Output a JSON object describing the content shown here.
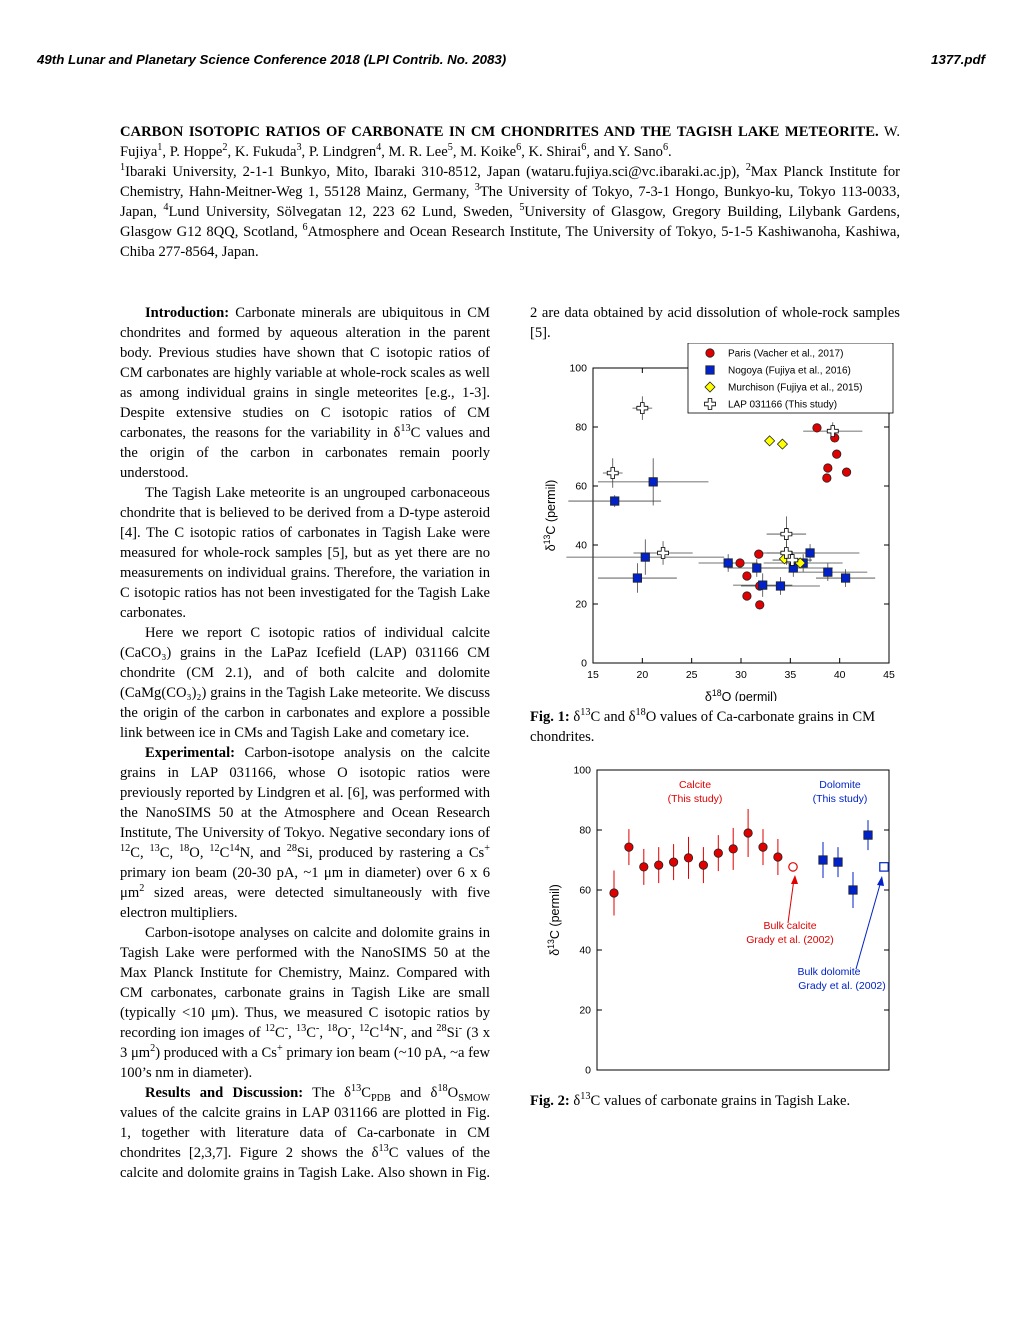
{
  "header": {
    "left": "49th Lunar and Planetary Science Conference 2018 (LPI Contrib. No. 2083)",
    "right": "1377.pdf"
  },
  "title_block": [
    {
      "b": "CARBON ISOTOPIC RATIOS OF CARBONATE IN CM CHONDRITES AND THE TAGISH LAKE METEORITE."
    },
    " W. Fujiya",
    {
      "sup": "1"
    },
    ", P. Hoppe",
    {
      "sup": "2"
    },
    ", K. Fukuda",
    {
      "sup": "3"
    },
    ", P. Lindgren",
    {
      "sup": "4"
    },
    ", M. R. Lee",
    {
      "sup": "5"
    },
    ", M. Koike",
    {
      "sup": "6"
    },
    ", K. Shirai",
    {
      "sup": "6"
    },
    ", and Y. Sano",
    {
      "sup": "6"
    },
    "."
  ],
  "affiliations": [
    {
      "sup": "1"
    },
    "Ibaraki University, 2-1-1 Bunkyo, Mito, Ibaraki 310-8512, Japan (wataru.fujiya.sci@vc.ibaraki.ac.jp), ",
    {
      "sup": "2"
    },
    "Max Planck Institute for Chemistry, Hahn-Meitner-Weg 1, 55128 Mainz, Germany, ",
    {
      "sup": "3"
    },
    "The University of Tokyo, 7-3-1 Hongo, Bunkyo-ku, Tokyo 113-0033, Japan, ",
    {
      "sup": "4"
    },
    "Lund University, Sölvegatan 12, 223 62 Lund, Sweden, ",
    {
      "sup": "5"
    },
    "University of Glasgow, Gregory Building, Lilybank Gardens, Glasgow G12 8QQ, Scotland, ",
    {
      "sup": "6"
    },
    "Atmosphere and Ocean Research Institute, The University of Tokyo, 5-1-5 Kashiwanoha, Kashiwa, Chiba 277-8564, Japan."
  ],
  "body": [
    [
      {
        "b": "Introduction:"
      },
      " Carbonate minerals are ubiquitous in CM chondrites and formed by aqueous alteration in the parent body. Previous studies have shown that C isotopic ratios of CM carbonates are highly variable at whole-rock scales as well as among individual grains in single meteorites [e.g., 1-3]. Despite extensive studies on C isotopic ratios of CM carbonates, the reasons for the variability in δ",
      {
        "sup": "13"
      },
      "C values and the origin of the carbon in carbonates remain poorly understood."
    ],
    [
      "The Tagish Lake meteorite is an ungrouped carbonaceous chondrite that is believed to be derived from a D-type asteroid [4]. The C isotopic ratios of carbonates in Tagish Lake were measured for whole-rock samples [5], but as yet there are no measurements on individual grains. Therefore, the variation in C isotopic ratios has not been investigated for the Tagish Lake carbonates."
    ],
    [
      "Here we report C isotopic ratios of individual calcite (CaCO₃) grains in the LaPaz Icefield (LAP) 031166 CM chondrite (CM 2.1), and of both calcite and dolomite (CaMg(CO₃)₂) grains in the Tagish Lake meteorite. We discuss the origin of the carbon in carbonates and explore a possible link between ice in CMs and Tagish Lake and cometary ice."
    ],
    [
      {
        "b": "Experimental:"
      },
      " Carbon-isotope analysis on the calcite grains in LAP 031166, whose O isotopic ratios were previously reported by Lindgren et al. [6], was performed with the NanoSIMS 50 at the Atmosphere and Ocean Research Institute, The University of Tokyo. Negative secondary ions of ",
      {
        "sup": "12"
      },
      "C, ",
      {
        "sup": "13"
      },
      "C, ",
      {
        "sup": "18"
      },
      "O, ",
      {
        "sup": "12"
      },
      "C",
      {
        "sup": "14"
      },
      "N, and ",
      {
        "sup": "28"
      },
      "Si, produced by rastering a Cs",
      {
        "sup": "+"
      },
      " primary ion beam (20-30 pA, ~1 μm in diameter) over 6 x 6 μm",
      {
        "sup": "2"
      },
      " sized areas, were detected simultaneously with five electron multipliers."
    ],
    [
      "Carbon-isotope analyses on calcite and dolomite grains in Tagish Lake were performed with the NanoSIMS 50 at the Max Planck Institute for Chemistry, Mainz. Compared with CM carbonates, carbonate grains in Tagish Like are small (typically <10 μm). Thus, we measured C isotopic ratios by recording ion images of ",
      {
        "sup": "12"
      },
      "C",
      {
        "sup": "-"
      },
      ", ",
      {
        "sup": "13"
      },
      "C",
      {
        "sup": "-"
      },
      ", ",
      {
        "sup": "18"
      },
      "O",
      {
        "sup": "-"
      },
      ", ",
      {
        "sup": "12"
      },
      "C",
      {
        "sup": "14"
      },
      "N",
      {
        "sup": "-"
      },
      ", and ",
      {
        "sup": "28"
      },
      "Si",
      {
        "sup": "-"
      },
      " (3 x 3 μm",
      {
        "sup": "2"
      },
      ") produced with a Cs",
      {
        "sup": "+"
      },
      " primary ion beam (~10 pA, ~a few 100’s nm in diameter)."
    ],
    [
      {
        "b": "Results and Discussion:"
      },
      " The δ",
      {
        "sup": "13"
      },
      "C",
      {
        "sub": "PDB"
      },
      " and δ",
      {
        "sup": "18"
      },
      "O",
      {
        "sub": "SMOW"
      },
      " values of the calcite grains in LAP 031166 are plotted in Fig. 1, together with literature data of Ca-carbonate in CM chondrites [2,3,7]. Figure 2 shows the δ",
      {
        "sup": "13"
      },
      "C values of the calcite and dolomite grains in Tagish Lake. Also shown in Fig. 2 are data obtained by acid dissolution of whole-rock samples [5]."
    ]
  ],
  "chart_data": [
    {
      "type": "scatter",
      "xlabel": [
        "δ",
        {
          "sup": "18"
        },
        "O (permil)"
      ],
      "ylabel": [
        "δ",
        {
          "sup": "13"
        },
        "C (permil)"
      ],
      "xlim": [
        15,
        45
      ],
      "ylim": [
        0,
        100
      ],
      "xticks": [
        15,
        20,
        25,
        30,
        35,
        40,
        45
      ],
      "yticks": [
        0,
        20,
        40,
        60,
        80,
        100
      ],
      "legend": "upper right",
      "series": [
        {
          "name": "Paris (Vacher et al., 2017)",
          "color": "#e00000",
          "marker": "circle",
          "filled": true,
          "x": [
            37.7,
            39.5,
            39.7,
            38.8,
            38.7,
            40.7,
            31.8,
            28.7,
            29.9,
            30.6,
            31.9,
            30.6,
            31.9
          ],
          "values": [
            79.7,
            76.3,
            70.8,
            66.1,
            62.7,
            64.7,
            36.9,
            33.9,
            33.9,
            29.5,
            26.1,
            22.7,
            19.7
          ]
        },
        {
          "name": "Nogoya (Fujiya et al., 2016)",
          "color": "#0022c8",
          "marker": "square",
          "filled": true,
          "x": [
            17.2,
            21.1,
            20.3,
            19.5,
            28.7,
            31.6,
            32.2,
            34.0,
            35.3,
            37.0,
            36.3,
            38.8,
            40.6
          ],
          "values": [
            54.9,
            61.4,
            35.9,
            28.8,
            33.9,
            32.2,
            26.4,
            26.1,
            32.2,
            37.3,
            33.9,
            30.8,
            28.8
          ],
          "xerr": [
            4.7,
            5.6,
            8,
            4,
            3,
            3,
            3,
            4,
            4,
            5,
            4,
            4,
            3
          ],
          "yerr": [
            2,
            8,
            6,
            5,
            3,
            3,
            4,
            3,
            3,
            3,
            3,
            3,
            3
          ]
        },
        {
          "name": "Murchison (Fujiya et al., 2015)",
          "color": "#ffff00",
          "marker": "diamond",
          "filled": true,
          "x": [
            32.9,
            34.2,
            34.4,
            36.0
          ],
          "values": [
            75.3,
            74.2,
            35.3,
            33.9
          ]
        },
        {
          "name": "LAP 031166 (This study)",
          "color": "#ffffff",
          "marker": "cross",
          "filled": true,
          "x": [
            20.0,
            17.0,
            22.1,
            39.3,
            34.6,
            34.6,
            35.2
          ],
          "values": [
            86.4,
            64.4,
            37.3,
            78.6,
            43.7,
            37.3,
            34.9
          ],
          "xerr": [
            1,
            1,
            3,
            3,
            2,
            2,
            2
          ],
          "yerr": [
            4,
            5,
            4,
            3,
            6,
            4,
            3
          ]
        }
      ],
      "caption": [
        {
          "b": "Fig. 1:"
        },
        " δ",
        {
          "sup": "13"
        },
        "C and δ",
        {
          "sup": "18"
        },
        "O values of Ca-carbonate grains in CM chondrites."
      ]
    },
    {
      "type": "strip",
      "ylabel": [
        "δ",
        {
          "sup": "13"
        },
        "C (permil)"
      ],
      "ylim": [
        0,
        100
      ],
      "yticks": [
        0,
        20,
        40,
        60,
        80,
        100
      ],
      "series": [
        {
          "color": "#e00000",
          "marker": "circle",
          "filled": true,
          "values": [
            59,
            74.3,
            67.7,
            68.3,
            69.3,
            70.7,
            68.3,
            72.3,
            73.7,
            79,
            74.3,
            71
          ],
          "yerr": [
            7.5,
            6,
            6,
            6,
            6,
            7,
            6,
            6,
            7,
            8,
            6,
            6
          ]
        },
        {
          "color": "#0022c8",
          "marker": "square",
          "filled": true,
          "values": [
            70,
            69.3,
            60,
            78.3
          ],
          "yerr": [
            6,
            5,
            6,
            5
          ]
        },
        {
          "color": "#e00000",
          "marker": "circle",
          "filled": false,
          "values": [
            67.7
          ]
        },
        {
          "color": "#0022c8",
          "marker": "square",
          "filled": false,
          "values": [
            67.7
          ]
        }
      ],
      "annotations": [
        {
          "text": "Calcite",
          "color": "#e00000"
        },
        {
          "text": "(This study)",
          "color": "#e00000"
        },
        {
          "text": "Dolomite",
          "color": "#0022c8"
        },
        {
          "text": "(This study)",
          "color": "#0022c8"
        },
        {
          "text": "Bulk calcite",
          "color": "#e00000"
        },
        {
          "text": "Grady et al. (2002)",
          "color": "#e00000"
        },
        {
          "text": "Bulk dolomite",
          "color": "#0022c8"
        },
        {
          "text": "Grady et al. (2002)",
          "color": "#0022c8"
        }
      ],
      "caption": [
        {
          "b": "Fig. 2:"
        },
        " δ",
        {
          "sup": "13"
        },
        "C values of carbonate grains in Tagish Lake."
      ]
    }
  ]
}
